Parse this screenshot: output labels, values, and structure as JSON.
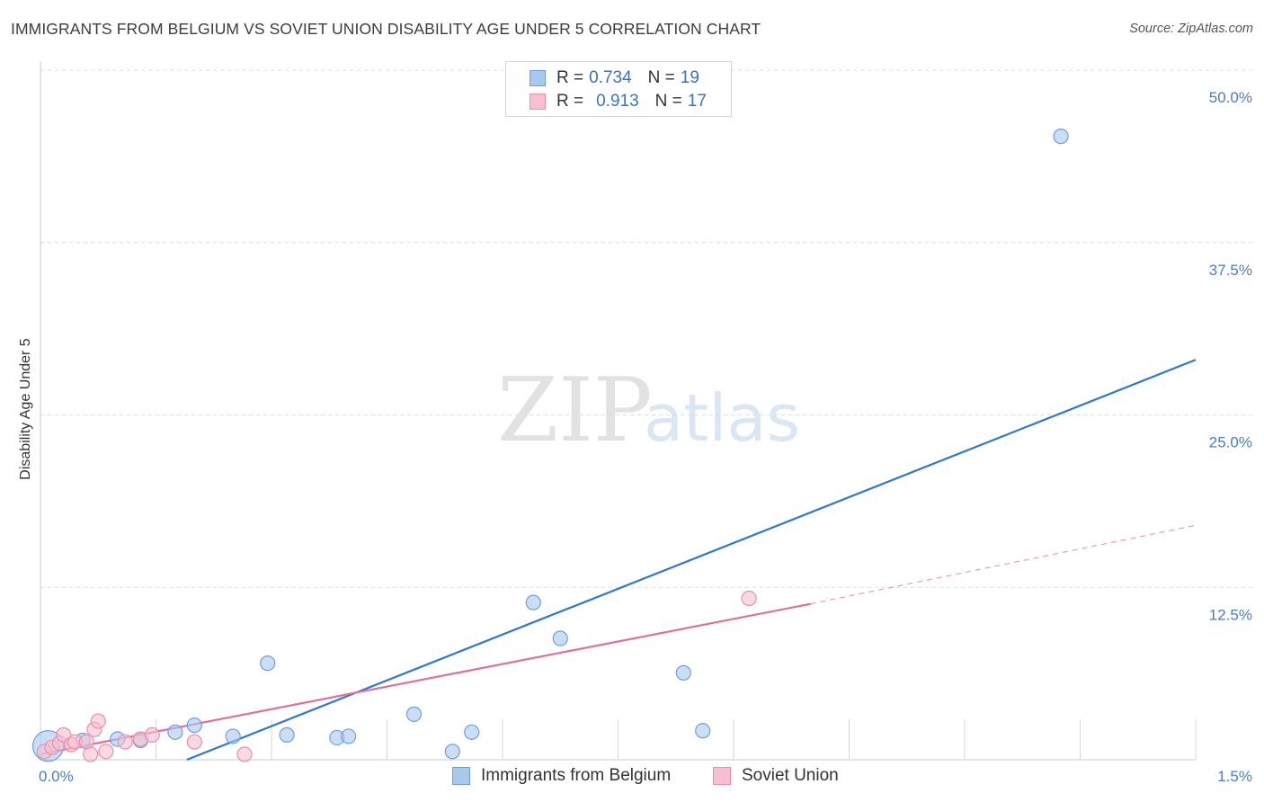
{
  "header": {
    "title": "IMMIGRANTS FROM BELGIUM VS SOVIET UNION DISABILITY AGE UNDER 5 CORRELATION CHART",
    "source": "Source: ZipAtlas.com"
  },
  "watermark": {
    "zip": "ZIP",
    "atlas": "atlas"
  },
  "legend": {
    "rows": [
      {
        "r_label": "R =",
        "r_value": "0.734",
        "n_label": "N =",
        "n_value": "19",
        "color": "#a9c8f0",
        "border": "#6e9fdc"
      },
      {
        "r_label": "R =",
        "r_value": "0.913",
        "n_label": "N =",
        "n_value": "17",
        "color": "#f7bfd0",
        "border": "#ea8fac"
      }
    ]
  },
  "bottom_legend": [
    {
      "label": "Immigrants from Belgium",
      "color": "#a9c8f0",
      "border": "#6e9fdc"
    },
    {
      "label": "Soviet Union",
      "color": "#f7bfd0",
      "border": "#ea8fac"
    }
  ],
  "chart_data": {
    "type": "scatter",
    "title": "IMMIGRANTS FROM BELGIUM VS SOVIET UNION DISABILITY AGE UNDER 5 CORRELATION CHART",
    "xlabel": "",
    "ylabel": "Disability Age Under 5",
    "xlim": [
      0,
      1.5
    ],
    "ylim": [
      0,
      50
    ],
    "x_tick_labels": [
      "0.0%",
      "1.5%"
    ],
    "y_ticks": [
      12.5,
      25.0,
      37.5,
      50.0
    ],
    "y_tick_labels": [
      "12.5%",
      "25.0%",
      "37.5%",
      "50.0%"
    ],
    "series": [
      {
        "name": "Immigrants from Belgium",
        "color": "#a9c8f0",
        "stroke": "#6e9fdc",
        "line_color": "#2f78d2",
        "points": [
          {
            "x": 0.01,
            "y": 1.0,
            "r": 17
          },
          {
            "x": 0.055,
            "y": 1.4
          },
          {
            "x": 0.1,
            "y": 1.5
          },
          {
            "x": 0.13,
            "y": 1.4
          },
          {
            "x": 0.175,
            "y": 2.0
          },
          {
            "x": 0.2,
            "y": 2.5
          },
          {
            "x": 0.25,
            "y": 1.7
          },
          {
            "x": 0.295,
            "y": 7.0
          },
          {
            "x": 0.32,
            "y": 1.8
          },
          {
            "x": 0.385,
            "y": 1.6
          },
          {
            "x": 0.4,
            "y": 1.7
          },
          {
            "x": 0.485,
            "y": 3.3
          },
          {
            "x": 0.535,
            "y": 0.6
          },
          {
            "x": 0.56,
            "y": 2.0
          },
          {
            "x": 0.64,
            "y": 11.4
          },
          {
            "x": 0.675,
            "y": 8.8
          },
          {
            "x": 0.835,
            "y": 6.3
          },
          {
            "x": 0.86,
            "y": 2.1
          },
          {
            "x": 1.325,
            "y": 45.2
          }
        ],
        "trend": {
          "x0": 0.19,
          "y0": 0.0,
          "x1": 1.5,
          "y1": 29.0
        }
      },
      {
        "name": "Soviet Union",
        "color": "#f7bfd0",
        "stroke": "#ea8fac",
        "line_color": "#e0709b",
        "points": [
          {
            "x": 0.005,
            "y": 0.6
          },
          {
            "x": 0.015,
            "y": 0.9
          },
          {
            "x": 0.025,
            "y": 1.2
          },
          {
            "x": 0.03,
            "y": 1.8
          },
          {
            "x": 0.04,
            "y": 1.1
          },
          {
            "x": 0.045,
            "y": 1.3
          },
          {
            "x": 0.06,
            "y": 1.3
          },
          {
            "x": 0.065,
            "y": 0.4
          },
          {
            "x": 0.07,
            "y": 2.2
          },
          {
            "x": 0.075,
            "y": 2.8
          },
          {
            "x": 0.085,
            "y": 0.6
          },
          {
            "x": 0.11,
            "y": 1.3
          },
          {
            "x": 0.13,
            "y": 1.5
          },
          {
            "x": 0.145,
            "y": 1.8
          },
          {
            "x": 0.2,
            "y": 1.3
          },
          {
            "x": 0.265,
            "y": 0.4
          },
          {
            "x": 0.92,
            "y": 11.7
          }
        ],
        "trend": {
          "x0": 0.0,
          "y0": 0.4,
          "x1": 1.0,
          "y1": 11.3
        },
        "trend_dashed": {
          "x0": 1.0,
          "y0": 11.3,
          "x1": 1.5,
          "y1": 17.0
        }
      }
    ]
  }
}
